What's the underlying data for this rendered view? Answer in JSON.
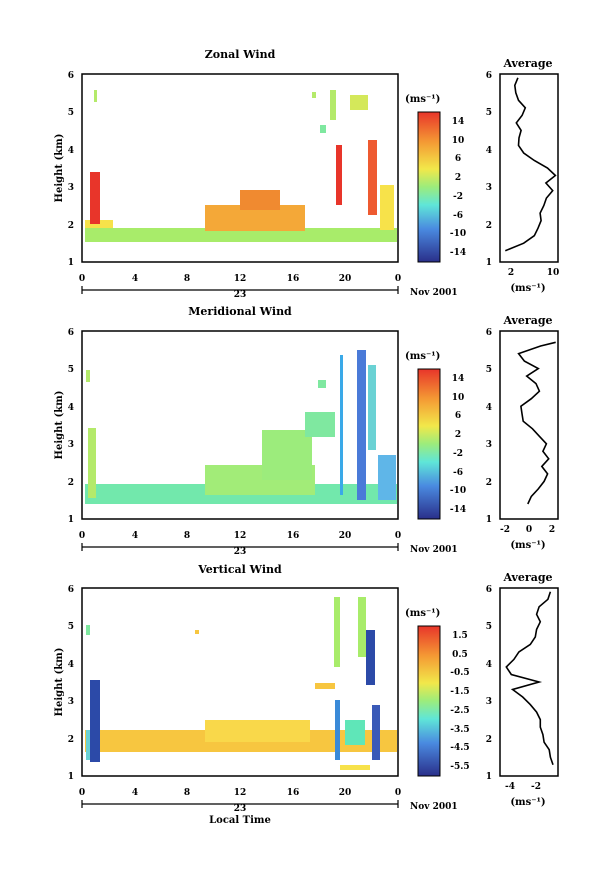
{
  "figure": {
    "x_axis_label": "Local Time",
    "x_ticks": [
      "0",
      "4",
      "8",
      "12",
      "16",
      "20",
      "0"
    ],
    "day_label": "23",
    "month_label": "Nov 2001",
    "y_label": "Height (km)",
    "avg_title": "Average",
    "unit_label": "(ms⁻¹)"
  },
  "chart_data": [
    {
      "type": "heatmap",
      "title": "Zonal Wind",
      "ylabel": "Height (km)",
      "xlabel": "Local Time",
      "xlim": [
        0,
        24
      ],
      "ylim": [
        1,
        6
      ],
      "y_ticks": [
        "1",
        "2",
        "3",
        "4",
        "5",
        "6"
      ],
      "colorbar_unit": "(ms⁻¹)",
      "colorbar_range": [
        -16,
        16
      ],
      "colorbar_ticks": [
        "14",
        "10",
        "6",
        "2",
        "-2",
        "-6",
        "-10",
        "-14"
      ],
      "colorbar_tick_values": [
        14,
        10,
        6,
        2,
        -2,
        -6,
        -10,
        -14
      ],
      "colors": {
        "high": "#e8352a",
        "mid": "#f2e84a",
        "zero": "#5fe6b8",
        "low": "#2a2f8a"
      },
      "average_profile": {
        "xlim": [
          0,
          11
        ],
        "x_ticks": [
          "2",
          "10"
        ],
        "x_tick_values": [
          2,
          10
        ],
        "unit": "(ms⁻¹)",
        "height": [
          1.3,
          1.5,
          1.7,
          1.9,
          2.1,
          2.3,
          2.5,
          2.7,
          2.9,
          3.1,
          3.3,
          3.5,
          3.7,
          3.9,
          4.1,
          4.3,
          4.5,
          4.7,
          4.9,
          5.1,
          5.3,
          5.5,
          5.7,
          5.9
        ],
        "values": [
          1.0,
          4.5,
          6.5,
          7.2,
          7.8,
          7.6,
          8.3,
          8.8,
          10.0,
          8.7,
          10.5,
          9.0,
          6.5,
          4.5,
          3.5,
          3.6,
          4.0,
          3.1,
          4.2,
          4.8,
          3.5,
          3.0,
          2.8,
          3.4
        ]
      }
    },
    {
      "type": "heatmap",
      "title": "Meridional Wind",
      "ylabel": "Height (km)",
      "xlabel": "Local Time",
      "xlim": [
        0,
        24
      ],
      "ylim": [
        1,
        6
      ],
      "y_ticks": [
        "1",
        "2",
        "3",
        "4",
        "5",
        "6"
      ],
      "colorbar_unit": "(ms⁻¹)",
      "colorbar_range": [
        -16,
        16
      ],
      "colorbar_ticks": [
        "14",
        "10",
        "6",
        "2",
        "-2",
        "-6",
        "-10",
        "-14"
      ],
      "colorbar_tick_values": [
        14,
        10,
        6,
        2,
        -2,
        -6,
        -10,
        -14
      ],
      "colors": {
        "high": "#e8352a",
        "mid": "#f2e84a",
        "zero": "#5fe6b8",
        "low": "#2a2f8a"
      },
      "average_profile": {
        "xlim": [
          -2.5,
          2.5
        ],
        "x_ticks": [
          "-2",
          "0",
          "2"
        ],
        "x_tick_values": [
          -2,
          0,
          2
        ],
        "unit": "(ms⁻¹)",
        "height": [
          1.4,
          1.6,
          1.8,
          2.0,
          2.2,
          2.4,
          2.6,
          2.8,
          3.0,
          3.2,
          3.4,
          3.6,
          3.8,
          4.0,
          4.2,
          4.4,
          4.6,
          4.8,
          5.0,
          5.2,
          5.4,
          5.6,
          5.7
        ],
        "values": [
          -0.1,
          0.2,
          0.8,
          1.3,
          1.6,
          1.1,
          1.7,
          1.2,
          1.5,
          0.9,
          0.3,
          -0.5,
          -0.6,
          -0.7,
          0.2,
          0.9,
          0.6,
          -0.2,
          0.8,
          -0.4,
          -0.9,
          1.0,
          2.3
        ]
      }
    },
    {
      "type": "heatmap",
      "title": "Vertical Wind",
      "ylabel": "Height (km)",
      "xlabel": "Local Time",
      "xlim": [
        0,
        24
      ],
      "ylim": [
        1,
        6
      ],
      "y_ticks": [
        "1",
        "2",
        "3",
        "4",
        "5",
        "6"
      ],
      "colorbar_unit": "(ms⁻¹)",
      "colorbar_range": [
        -6,
        2
      ],
      "colorbar_ticks": [
        "1.5",
        "0.5",
        "-0.5",
        "-1.5",
        "-2.5",
        "-3.5",
        "-4.5",
        "-5.5"
      ],
      "colorbar_tick_values": [
        1.5,
        0.5,
        -0.5,
        -1.5,
        -2.5,
        -3.5,
        -4.5,
        -5.5
      ],
      "colors": {
        "high": "#e8352a",
        "mid": "#f2e84a",
        "zero": "#5fe6b8",
        "low": "#2a2f8a"
      },
      "average_profile": {
        "xlim": [
          -4.8,
          -0.2
        ],
        "x_ticks": [
          "-4",
          "-2"
        ],
        "x_tick_values": [
          -4,
          -2
        ],
        "unit": "(ms⁻¹)",
        "height": [
          1.3,
          1.5,
          1.7,
          1.9,
          2.1,
          2.3,
          2.5,
          2.7,
          2.9,
          3.1,
          3.3,
          3.5,
          3.7,
          3.9,
          4.1,
          4.3,
          4.5,
          4.7,
          4.9,
          5.1,
          5.3,
          5.5,
          5.7,
          5.9
        ],
        "values": [
          -0.6,
          -0.8,
          -0.9,
          -1.3,
          -1.4,
          -1.6,
          -1.6,
          -1.9,
          -2.4,
          -3.0,
          -3.8,
          -1.7,
          -3.9,
          -4.3,
          -3.7,
          -3.3,
          -2.4,
          -2.0,
          -1.9,
          -1.6,
          -1.9,
          -1.7,
          -1.0,
          -0.8
        ]
      }
    }
  ]
}
